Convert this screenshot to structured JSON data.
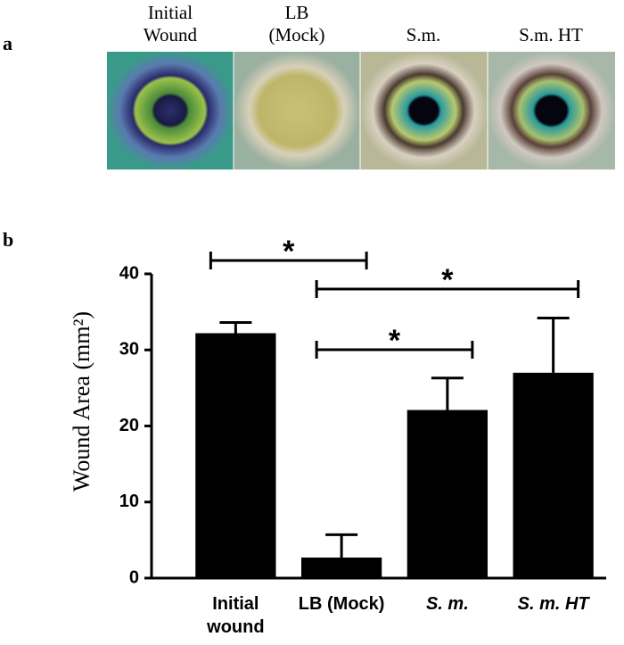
{
  "panel_a": {
    "letter": "a",
    "images": [
      {
        "label": "Initial Wound"
      },
      {
        "label": "LB (Mock)"
      },
      {
        "label": "S.m."
      },
      {
        "label": "S.m. HT"
      }
    ]
  },
  "chart_data": {
    "type": "bar",
    "panel_letter": "b",
    "y_label": "Wound Area (mm²)",
    "categories": [
      "Initial wound",
      "LB (Mock)",
      "S. m.",
      "S. m. HT"
    ],
    "values": [
      32.2,
      2.7,
      22.1,
      27.0
    ],
    "errors": [
      1.4,
      3.0,
      4.2,
      7.2
    ],
    "color": "#000000",
    "ylim": [
      0,
      40
    ],
    "yticks": [
      0,
      10,
      20,
      30,
      40
    ],
    "significance": [
      {
        "from": 0,
        "to": 1,
        "label": "*"
      },
      {
        "from": 1,
        "to": 3,
        "label": "*"
      },
      {
        "from": 1,
        "to": 2,
        "label": "*"
      }
    ]
  }
}
